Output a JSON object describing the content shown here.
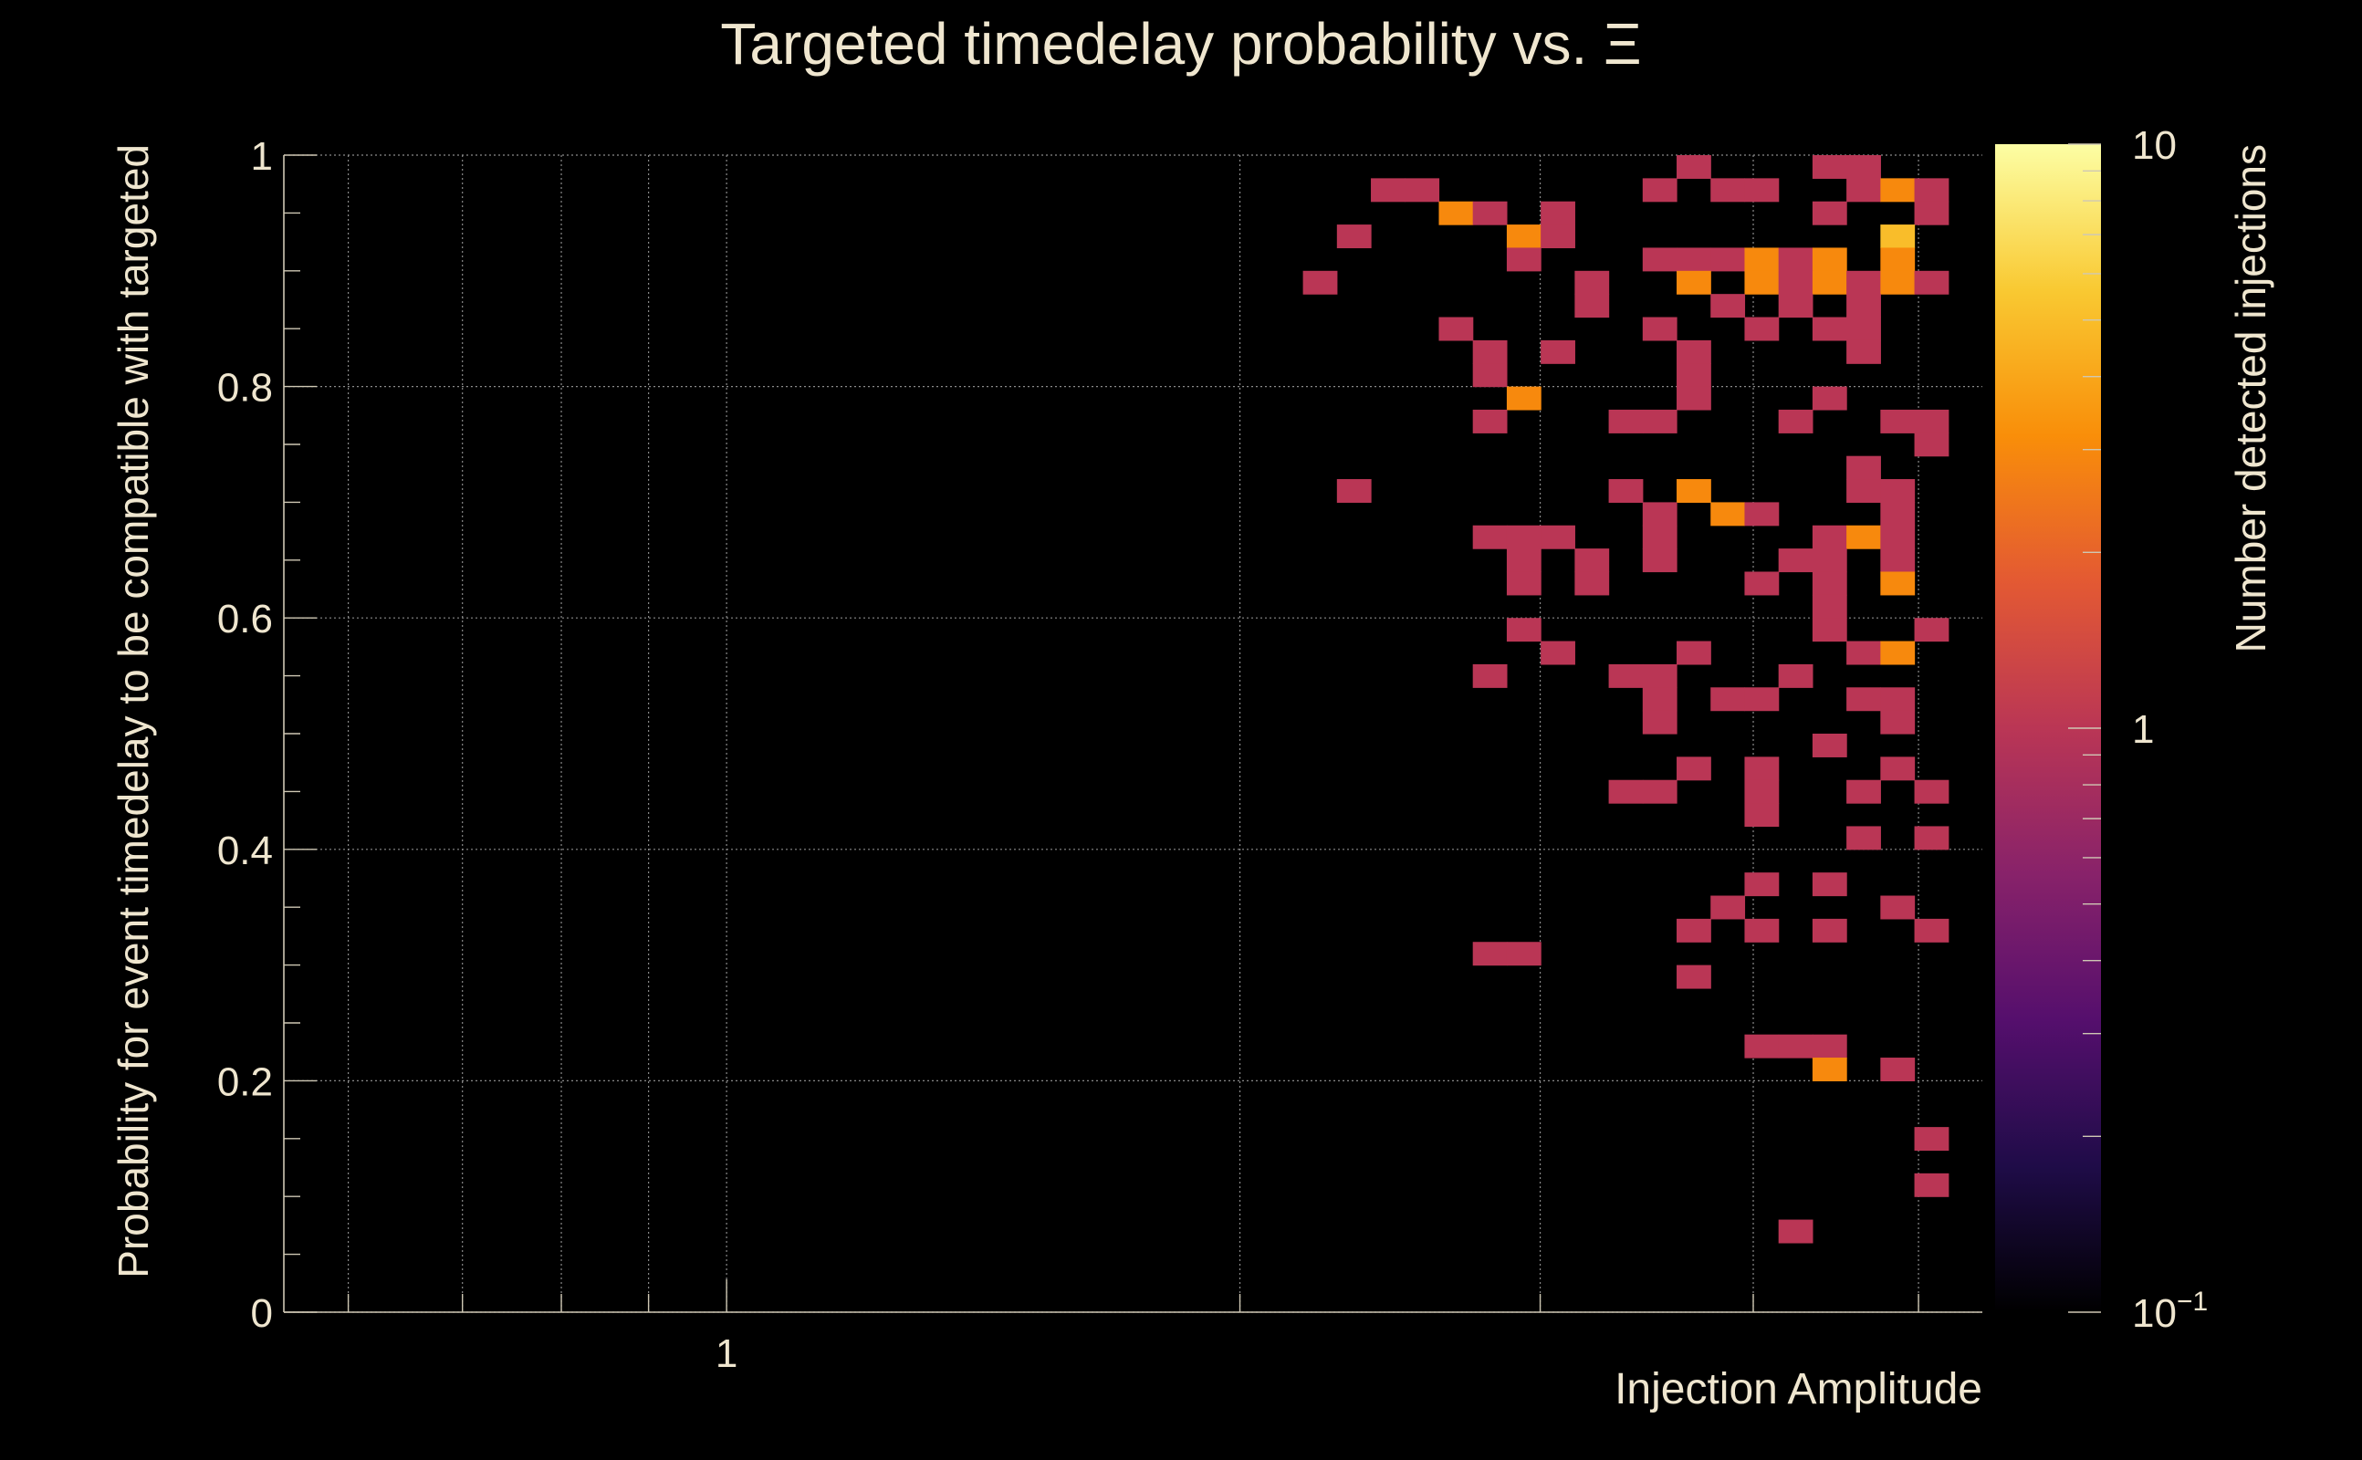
{
  "chart_data": {
    "type": "heatmap",
    "title": "Targeted timedelay probability vs. Ξ",
    "xlabel": "Injection Amplitude",
    "ylabel": "Probability for event timedelay to be compatible with targeted",
    "colorbar_label": "Number detected injections",
    "x_scale": "log",
    "xlim": [
      0.55,
      5.45
    ],
    "ylim": [
      0,
      1
    ],
    "x_tick_labels": [
      {
        "value": 1,
        "label": "1"
      }
    ],
    "y_ticks": [
      0,
      0.2,
      0.4,
      0.6,
      0.8,
      1
    ],
    "y_tick_labels": [
      "0",
      "0.2",
      "0.4",
      "0.6",
      "0.8",
      "1"
    ],
    "z_scale": "log",
    "zlim": [
      0.1,
      10
    ],
    "z_tick_labels": [
      {
        "value": 0.1,
        "label": "10",
        "sup": "−1"
      },
      {
        "value": 1,
        "label": "1"
      },
      {
        "value": 10,
        "label": "10"
      }
    ],
    "grid": true,
    "colormap": [
      "#000000",
      "#1f0c48",
      "#550f6d",
      "#88226a",
      "#ba3655",
      "#e35933",
      "#f98e09",
      "#f9c932",
      "#fcfea4"
    ],
    "bins_x_count": 50,
    "bins_y_count": 50,
    "cells": [
      [
        41,
        49,
        1
      ],
      [
        45,
        49,
        1
      ],
      [
        46,
        49,
        1
      ],
      [
        32,
        48,
        1
      ],
      [
        33,
        48,
        1
      ],
      [
        40,
        48,
        1
      ],
      [
        42,
        48,
        1
      ],
      [
        43,
        48,
        1
      ],
      [
        46,
        48,
        1
      ],
      [
        47,
        48,
        3
      ],
      [
        48,
        48,
        1
      ],
      [
        34,
        47,
        3
      ],
      [
        35,
        47,
        1
      ],
      [
        37,
        47,
        1
      ],
      [
        45,
        47,
        1
      ],
      [
        48,
        47,
        1
      ],
      [
        31,
        46,
        1
      ],
      [
        36,
        46,
        3
      ],
      [
        37,
        46,
        1
      ],
      [
        47,
        46,
        5
      ],
      [
        36,
        45,
        1
      ],
      [
        40,
        45,
        1
      ],
      [
        41,
        45,
        1
      ],
      [
        42,
        45,
        1
      ],
      [
        43,
        45,
        3
      ],
      [
        44,
        45,
        1
      ],
      [
        45,
        45,
        3
      ],
      [
        47,
        45,
        3
      ],
      [
        30,
        44,
        1
      ],
      [
        38,
        44,
        1
      ],
      [
        41,
        44,
        3
      ],
      [
        43,
        44,
        3
      ],
      [
        44,
        44,
        1
      ],
      [
        45,
        44,
        3
      ],
      [
        46,
        44,
        1
      ],
      [
        47,
        44,
        3
      ],
      [
        48,
        44,
        1
      ],
      [
        38,
        43,
        1
      ],
      [
        42,
        43,
        1
      ],
      [
        44,
        43,
        1
      ],
      [
        46,
        43,
        1
      ],
      [
        34,
        42,
        1
      ],
      [
        40,
        42,
        1
      ],
      [
        43,
        42,
        1
      ],
      [
        45,
        42,
        1
      ],
      [
        46,
        42,
        1
      ],
      [
        35,
        41,
        1
      ],
      [
        37,
        41,
        1
      ],
      [
        41,
        41,
        1
      ],
      [
        46,
        41,
        1
      ],
      [
        35,
        40,
        1
      ],
      [
        41,
        40,
        1
      ],
      [
        36,
        39,
        3
      ],
      [
        41,
        39,
        1
      ],
      [
        45,
        39,
        1
      ],
      [
        35,
        38,
        1
      ],
      [
        39,
        38,
        1
      ],
      [
        40,
        38,
        1
      ],
      [
        44,
        38,
        1
      ],
      [
        47,
        38,
        1
      ],
      [
        48,
        38,
        1
      ],
      [
        48,
        37,
        1
      ],
      [
        46,
        36,
        1
      ],
      [
        31,
        35,
        1
      ],
      [
        39,
        35,
        1
      ],
      [
        41,
        35,
        3
      ],
      [
        46,
        35,
        1
      ],
      [
        47,
        35,
        1
      ],
      [
        40,
        34,
        1
      ],
      [
        42,
        34,
        3
      ],
      [
        43,
        34,
        1
      ],
      [
        47,
        34,
        1
      ],
      [
        35,
        33,
        1
      ],
      [
        36,
        33,
        1
      ],
      [
        37,
        33,
        1
      ],
      [
        40,
        33,
        1
      ],
      [
        45,
        33,
        1
      ],
      [
        46,
        33,
        3
      ],
      [
        47,
        33,
        1
      ],
      [
        36,
        32,
        1
      ],
      [
        38,
        32,
        1
      ],
      [
        40,
        32,
        1
      ],
      [
        44,
        32,
        1
      ],
      [
        45,
        32,
        1
      ],
      [
        47,
        32,
        1
      ],
      [
        36,
        31,
        1
      ],
      [
        38,
        31,
        1
      ],
      [
        43,
        31,
        1
      ],
      [
        45,
        31,
        1
      ],
      [
        47,
        31,
        3
      ],
      [
        45,
        30,
        1
      ],
      [
        36,
        29,
        1
      ],
      [
        45,
        29,
        1
      ],
      [
        48,
        29,
        1
      ],
      [
        37,
        28,
        1
      ],
      [
        41,
        28,
        1
      ],
      [
        46,
        28,
        1
      ],
      [
        47,
        28,
        3
      ],
      [
        35,
        27,
        1
      ],
      [
        39,
        27,
        1
      ],
      [
        40,
        27,
        1
      ],
      [
        44,
        27,
        1
      ],
      [
        40,
        26,
        1
      ],
      [
        42,
        26,
        1
      ],
      [
        43,
        26,
        1
      ],
      [
        46,
        26,
        1
      ],
      [
        47,
        26,
        1
      ],
      [
        40,
        25,
        1
      ],
      [
        47,
        25,
        1
      ],
      [
        45,
        24,
        1
      ],
      [
        41,
        23,
        1
      ],
      [
        43,
        23,
        1
      ],
      [
        47,
        23,
        1
      ],
      [
        39,
        22,
        1
      ],
      [
        40,
        22,
        1
      ],
      [
        43,
        22,
        1
      ],
      [
        46,
        22,
        1
      ],
      [
        48,
        22,
        1
      ],
      [
        43,
        21,
        1
      ],
      [
        46,
        20,
        1
      ],
      [
        48,
        20,
        1
      ],
      [
        43,
        18,
        1
      ],
      [
        45,
        18,
        1
      ],
      [
        42,
        17,
        1
      ],
      [
        47,
        17,
        1
      ],
      [
        41,
        16,
        1
      ],
      [
        43,
        16,
        1
      ],
      [
        45,
        16,
        1
      ],
      [
        48,
        16,
        1
      ],
      [
        35,
        15,
        1
      ],
      [
        36,
        15,
        1
      ],
      [
        41,
        14,
        1
      ],
      [
        43,
        11,
        1
      ],
      [
        44,
        11,
        1
      ],
      [
        45,
        11,
        1
      ],
      [
        45,
        10,
        3
      ],
      [
        47,
        10,
        1
      ],
      [
        48,
        7,
        1
      ],
      [
        48,
        5,
        1
      ],
      [
        44,
        3,
        1
      ]
    ]
  }
}
